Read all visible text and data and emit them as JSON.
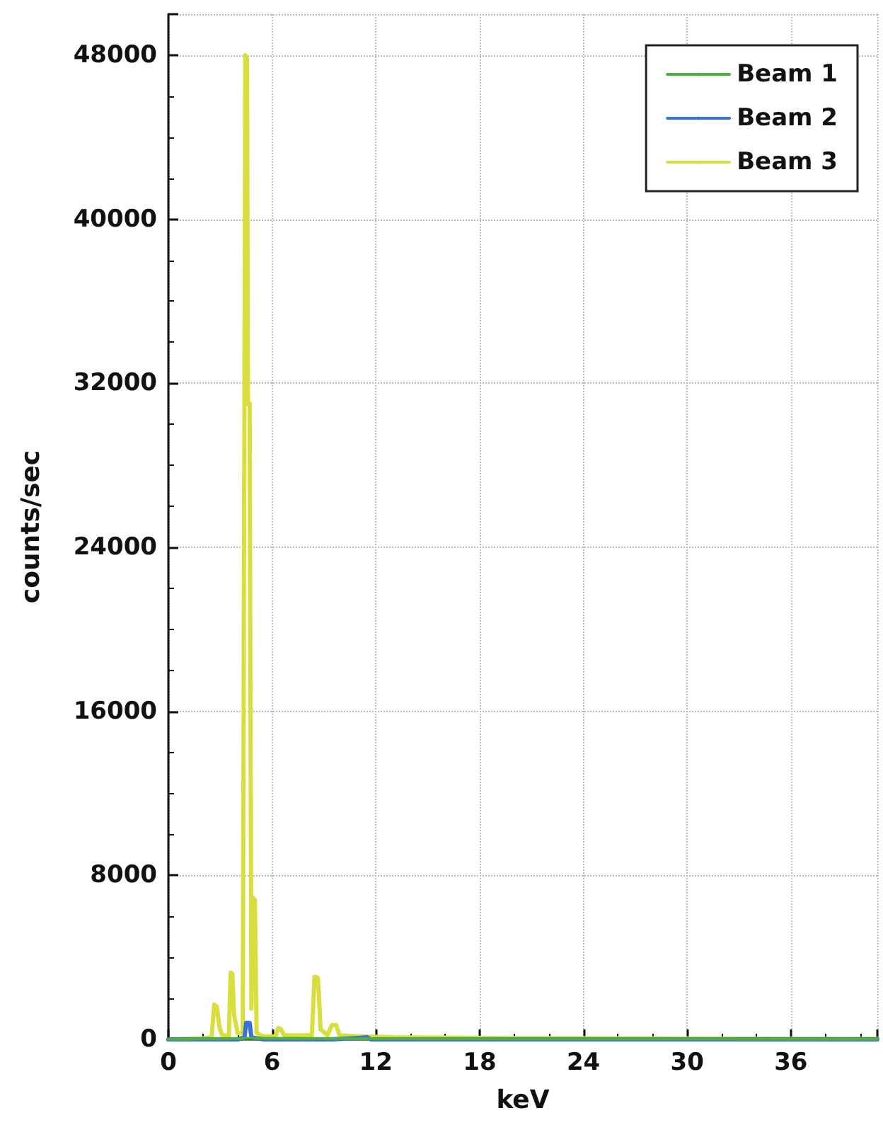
{
  "chart_data": {
    "type": "line",
    "xlabel": "keV",
    "ylabel": "counts/sec",
    "xlim": [
      0,
      41
    ],
    "ylim": [
      0,
      50000
    ],
    "xticks": [
      0,
      6,
      12,
      18,
      24,
      30,
      36
    ],
    "yticks": [
      0,
      8000,
      16000,
      24000,
      32000,
      40000,
      48000
    ],
    "grid": true,
    "legend": "top right",
    "marker": "none",
    "line_style": "solid",
    "series": [
      {
        "name": "Beam 1",
        "color": "#4caf40",
        "x": [
          0,
          5,
          20,
          41
        ],
        "values": [
          0,
          50,
          20,
          10
        ]
      },
      {
        "name": "Beam 2",
        "color": "#3a6fe0",
        "x": [
          0,
          4,
          4.4,
          4.5,
          4.7,
          4.8,
          5.5,
          9.5,
          11.5,
          11.7,
          15,
          41
        ],
        "values": [
          0,
          0,
          100,
          800,
          800,
          100,
          0,
          0,
          100,
          0,
          0,
          0
        ]
      },
      {
        "name": "Beam 3",
        "color": "#d8de3c",
        "x": [
          0,
          2,
          2.5,
          2.65,
          2.8,
          2.95,
          3.1,
          3.5,
          3.6,
          3.7,
          3.8,
          4.0,
          4.3,
          4.45,
          4.55,
          4.6,
          4.7,
          4.8,
          4.9,
          5.0,
          5.1,
          5.5,
          6.2,
          6.35,
          6.5,
          6.7,
          8.3,
          8.45,
          8.65,
          8.8,
          9.2,
          9.45,
          9.7,
          9.9,
          11,
          13,
          20,
          30,
          41
        ],
        "values": [
          0,
          50,
          100,
          1700,
          1600,
          600,
          200,
          200,
          3250,
          3200,
          1200,
          300,
          300,
          48000,
          47800,
          31000,
          31000,
          1500,
          6900,
          6800,
          300,
          150,
          150,
          550,
          500,
          200,
          200,
          3050,
          3000,
          500,
          200,
          700,
          700,
          200,
          150,
          100,
          60,
          40,
          30
        ]
      }
    ]
  }
}
